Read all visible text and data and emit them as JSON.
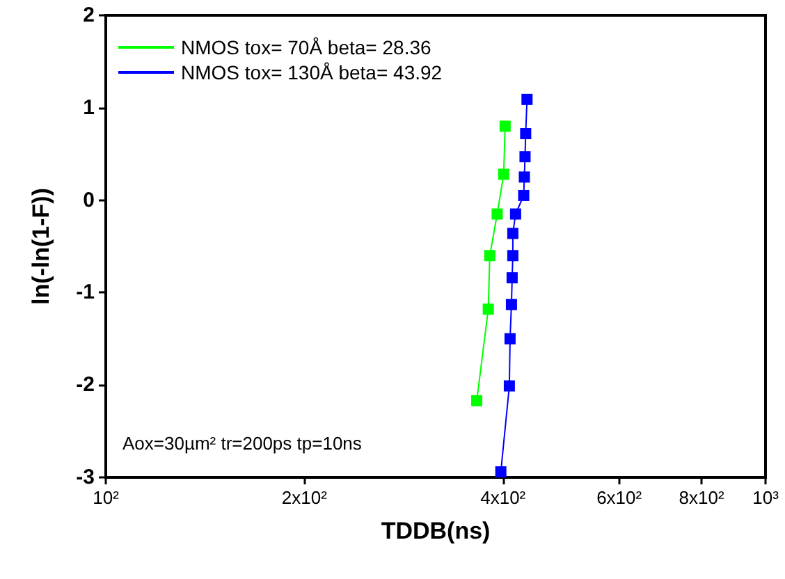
{
  "chart_data": {
    "type": "line",
    "xlabel": "TDDB(ns)",
    "ylabel": "ln(-ln(1-F))",
    "series": [
      {
        "name": "NMOS tox= 70Å beta= 28.36",
        "color": "#00ff00",
        "x": [
          365,
          380,
          382,
          392,
          401,
          403
        ],
        "values": [
          -2.17,
          -1.18,
          -0.6,
          -0.15,
          0.28,
          0.8
        ]
      },
      {
        "name": "NMOS tox= 130Å beta= 43.92",
        "color": "#0000ff",
        "x": [
          397,
          409,
          410,
          412,
          413,
          414,
          414,
          418,
          430,
          431,
          432,
          433,
          435
        ],
        "values": [
          -2.94,
          -2.01,
          -1.5,
          -1.13,
          -0.84,
          -0.6,
          -0.36,
          -0.15,
          0.05,
          0.25,
          0.47,
          0.72,
          1.09
        ]
      }
    ],
    "xlim": [
      100,
      1000
    ],
    "xticks": [
      {
        "value": 100,
        "label": "10²"
      },
      {
        "value": 200,
        "label": "2x10²"
      },
      {
        "value": 400,
        "label": "4x10²"
      },
      {
        "value": 600,
        "label": "6x10²"
      },
      {
        "value": 800,
        "label": "8x10²"
      },
      {
        "value": 1000,
        "label": "10³"
      }
    ],
    "ylim": [
      -3,
      2
    ],
    "yticks": [
      -3,
      -2,
      -1,
      0,
      1,
      2
    ],
    "log": "x",
    "grid": false,
    "legend": "top left",
    "marker": "square",
    "line_style": "solid",
    "annotations": [
      "Aox=30µm² tr=200ps tp=10ns"
    ]
  }
}
